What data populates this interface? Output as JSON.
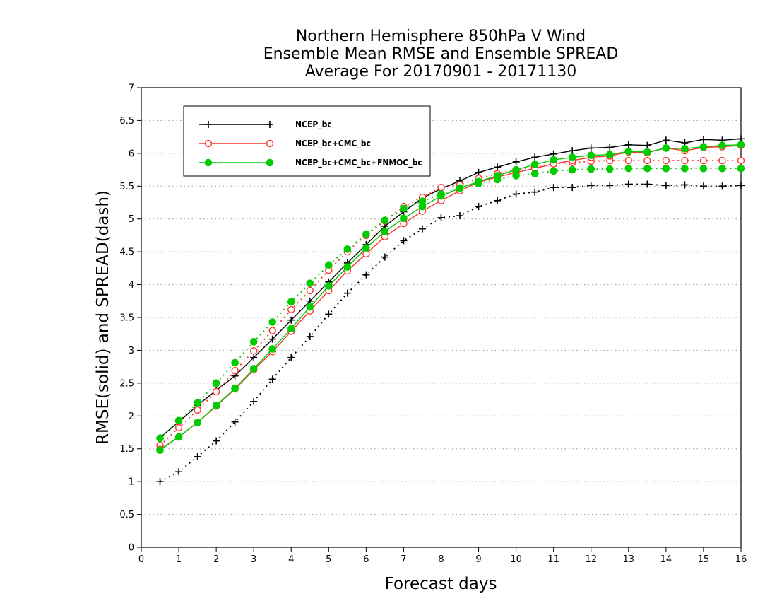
{
  "chart_data": {
    "type": "line",
    "title": [
      "Northern Hemisphere 850hPa V Wind",
      "Ensemble Mean RMSE and Ensemble SPREAD",
      "Average For 20170901 - 20171130"
    ],
    "xlabel": "Forecast days",
    "ylabel": "RMSE(solid) and SPREAD(dash)",
    "xlim": [
      0,
      16
    ],
    "ylim": [
      0,
      7
    ],
    "x_ticks": [
      "0",
      "1",
      "2",
      "3",
      "4",
      "5",
      "6",
      "7",
      "8",
      "9",
      "10",
      "11",
      "12",
      "13",
      "14",
      "15",
      "16"
    ],
    "y_ticks": [
      "0",
      "0.5",
      "1",
      "1.5",
      "2",
      "2.5",
      "3",
      "3.5",
      "4",
      "4.5",
      "5",
      "5.5",
      "6",
      "6.5",
      "7"
    ],
    "grid": "horizontal-dotted",
    "legend_placement": "top-left",
    "x": [
      0.5,
      1,
      1.5,
      2,
      2.5,
      3,
      3.5,
      4,
      4.5,
      5,
      5.5,
      6,
      6.5,
      7,
      7.5,
      8,
      8.5,
      9,
      9.5,
      10,
      10.5,
      11,
      11.5,
      12,
      12.5,
      13,
      13.5,
      14,
      14.5,
      15,
      15.5,
      16
    ],
    "series": [
      {
        "name": "NCEP_bc",
        "color": "#000000",
        "marker": "plus",
        "rmse": [
          1.67,
          1.91,
          2.16,
          2.39,
          2.61,
          2.89,
          3.17,
          3.46,
          3.75,
          4.04,
          4.33,
          4.61,
          4.89,
          5.11,
          5.32,
          5.46,
          5.58,
          5.71,
          5.79,
          5.87,
          5.94,
          5.99,
          6.04,
          6.08,
          6.09,
          6.13,
          6.12,
          6.2,
          6.16,
          6.21,
          6.2,
          6.22
        ],
        "spread": [
          1.0,
          1.15,
          1.38,
          1.62,
          1.91,
          2.22,
          2.56,
          2.89,
          3.21,
          3.55,
          3.87,
          4.15,
          4.42,
          4.67,
          4.85,
          5.02,
          5.05,
          5.19,
          5.28,
          5.38,
          5.41,
          5.48,
          5.48,
          5.51,
          5.51,
          5.53,
          5.53,
          5.51,
          5.52,
          5.5,
          5.5,
          5.51
        ]
      },
      {
        "name": "NCEP_bc+CMC_bc",
        "color": "#ff3333",
        "marker": "circle-open",
        "rmse": [
          1.49,
          1.68,
          1.9,
          2.15,
          2.41,
          2.7,
          2.98,
          3.29,
          3.6,
          3.91,
          4.21,
          4.47,
          4.73,
          4.93,
          5.12,
          5.28,
          5.43,
          5.56,
          5.64,
          5.71,
          5.77,
          5.84,
          5.89,
          5.94,
          5.96,
          6.02,
          6.01,
          6.08,
          6.04,
          6.09,
          6.1,
          6.12
        ],
        "spread": [
          1.55,
          1.82,
          2.09,
          2.37,
          2.69,
          2.99,
          3.3,
          3.62,
          3.91,
          4.22,
          4.5,
          4.75,
          4.97,
          5.19,
          5.33,
          5.48,
          5.52,
          5.62,
          5.69,
          5.75,
          5.79,
          5.84,
          5.86,
          5.88,
          5.89,
          5.89,
          5.89,
          5.89,
          5.89,
          5.89,
          5.89,
          5.89
        ]
      },
      {
        "name": "NCEP_bc+CMC_bc+FNMOC_bc",
        "color": "#00cc00",
        "marker": "circle-filled",
        "rmse": [
          1.48,
          1.68,
          1.9,
          2.16,
          2.42,
          2.72,
          3.02,
          3.33,
          3.66,
          3.98,
          4.27,
          4.56,
          4.81,
          5.01,
          5.19,
          5.35,
          5.47,
          5.57,
          5.66,
          5.75,
          5.83,
          5.9,
          5.94,
          5.97,
          5.98,
          6.03,
          6.02,
          6.08,
          6.07,
          6.1,
          6.12,
          6.13
        ],
        "spread": [
          1.66,
          1.93,
          2.2,
          2.5,
          2.81,
          3.13,
          3.43,
          3.74,
          4.02,
          4.3,
          4.54,
          4.77,
          4.98,
          5.16,
          5.27,
          5.38,
          5.47,
          5.54,
          5.6,
          5.66,
          5.69,
          5.73,
          5.75,
          5.76,
          5.76,
          5.77,
          5.77,
          5.77,
          5.77,
          5.77,
          5.77,
          5.77
        ]
      }
    ]
  }
}
